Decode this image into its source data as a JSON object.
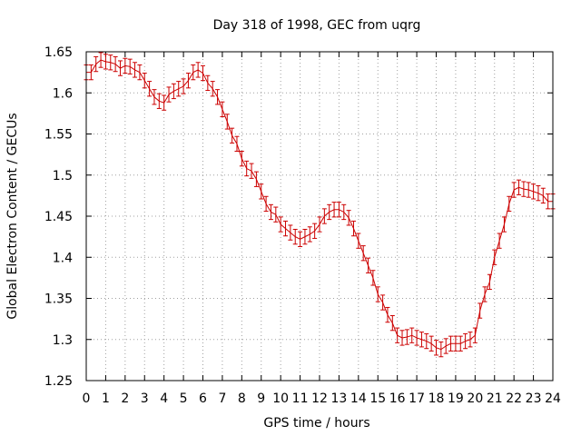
{
  "chart_data": {
    "type": "line",
    "title": "Day 318 of 1998, GEC from uqrg",
    "xlabel": "GPS time / hours",
    "ylabel": "Global Electron Content / GECUs",
    "xlim": [
      0,
      24
    ],
    "ylim": [
      1.25,
      1.65
    ],
    "grid": true,
    "x_ticks": [
      "0",
      "1",
      "2",
      "3",
      "4",
      "5",
      "6",
      "7",
      "8",
      "9",
      "10",
      "11",
      "12",
      "13",
      "14",
      "15",
      "16",
      "17",
      "18",
      "19",
      "20",
      "21",
      "22",
      "23",
      "24"
    ],
    "y_ticks": [
      "1.25",
      "1.3",
      "1.35",
      "1.4",
      "1.45",
      "1.5",
      "1.55",
      "1.6",
      "1.65"
    ],
    "error": 0.009,
    "series": [
      {
        "name": "GEC",
        "color": "#cc0000",
        "x": [
          0,
          0.25,
          0.5,
          0.75,
          1,
          1.25,
          1.5,
          1.75,
          2,
          2.25,
          2.5,
          2.75,
          3,
          3.25,
          3.5,
          3.75,
          4,
          4.25,
          4.5,
          4.75,
          5,
          5.25,
          5.5,
          5.75,
          6,
          6.25,
          6.5,
          6.75,
          7,
          7.25,
          7.5,
          7.75,
          8,
          8.25,
          8.5,
          8.75,
          9,
          9.25,
          9.5,
          9.75,
          10,
          10.25,
          10.5,
          10.75,
          11,
          11.25,
          11.5,
          11.75,
          12,
          12.25,
          12.5,
          12.75,
          13,
          13.25,
          13.5,
          13.75,
          14,
          14.25,
          14.5,
          14.75,
          15,
          15.25,
          15.5,
          15.75,
          16,
          16.25,
          16.5,
          16.75,
          17,
          17.25,
          17.5,
          17.75,
          18,
          18.25,
          18.5,
          18.75,
          19,
          19.25,
          19.5,
          19.75,
          20,
          20.25,
          20.5,
          20.75,
          21,
          21.25,
          21.5,
          21.75,
          22,
          22.25,
          22.5,
          22.75,
          23,
          23.25,
          23.5,
          23.75,
          24
        ],
        "y": [
          1.625,
          1.625,
          1.635,
          1.64,
          1.638,
          1.637,
          1.635,
          1.63,
          1.633,
          1.632,
          1.628,
          1.625,
          1.615,
          1.605,
          1.595,
          1.59,
          1.588,
          1.598,
          1.602,
          1.605,
          1.608,
          1.615,
          1.625,
          1.628,
          1.624,
          1.612,
          1.605,
          1.595,
          1.58,
          1.565,
          1.548,
          1.538,
          1.52,
          1.508,
          1.505,
          1.495,
          1.48,
          1.465,
          1.455,
          1.452,
          1.44,
          1.435,
          1.43,
          1.425,
          1.422,
          1.425,
          1.428,
          1.432,
          1.44,
          1.45,
          1.455,
          1.458,
          1.458,
          1.455,
          1.448,
          1.435,
          1.42,
          1.405,
          1.39,
          1.375,
          1.355,
          1.345,
          1.33,
          1.32,
          1.305,
          1.302,
          1.303,
          1.305,
          1.302,
          1.3,
          1.298,
          1.295,
          1.29,
          1.288,
          1.292,
          1.295,
          1.295,
          1.295,
          1.298,
          1.3,
          1.305,
          1.335,
          1.355,
          1.37,
          1.4,
          1.42,
          1.44,
          1.465,
          1.482,
          1.485,
          1.483,
          1.482,
          1.48,
          1.478,
          1.475,
          1.468,
          1.468
        ]
      }
    ]
  }
}
